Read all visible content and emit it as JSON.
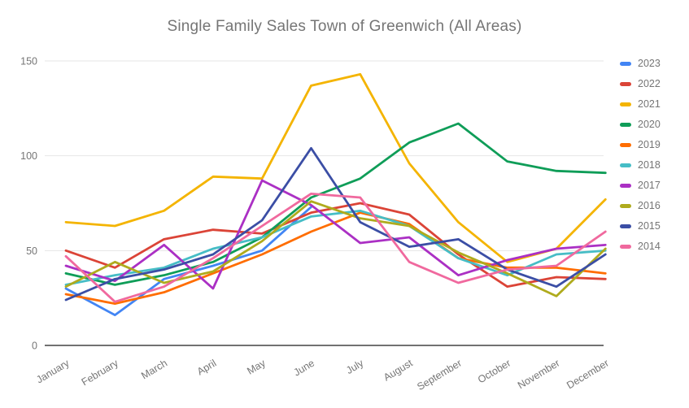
{
  "title": "Single Family Sales Town of Greenwich (All Areas)",
  "chart_data": {
    "type": "line",
    "title": "Single Family Sales Town of Greenwich (All Areas)",
    "xlabel": "",
    "ylabel": "",
    "ylim": [
      0,
      150
    ],
    "yticks": [
      0,
      50,
      100,
      150
    ],
    "grid": true,
    "legend_position": "right",
    "categories": [
      "January",
      "February",
      "March",
      "April",
      "May",
      "June",
      "July",
      "August",
      "September",
      "October",
      "November",
      "December"
    ],
    "series": [
      {
        "name": "2023",
        "color": "#4285F4",
        "values": [
          30,
          16,
          35,
          42,
          50,
          73,
          null,
          null,
          null,
          null,
          null,
          null
        ]
      },
      {
        "name": "2022",
        "color": "#DB4437",
        "values": [
          50,
          41,
          56,
          61,
          59,
          70,
          75,
          69,
          48,
          31,
          36,
          35
        ]
      },
      {
        "name": "2021",
        "color": "#F4B400",
        "values": [
          65,
          63,
          71,
          89,
          88,
          137,
          143,
          96,
          65,
          44,
          51,
          77
        ]
      },
      {
        "name": "2020",
        "color": "#0F9D58",
        "values": [
          38,
          32,
          37,
          44,
          57,
          78,
          88,
          107,
          117,
          97,
          92,
          91
        ]
      },
      {
        "name": "2019",
        "color": "#FF6D00",
        "values": [
          27,
          22,
          28,
          38,
          48,
          60,
          70,
          64,
          46,
          41,
          41,
          38
        ]
      },
      {
        "name": "2018",
        "color": "#46BDC6",
        "values": [
          32,
          37,
          41,
          51,
          57,
          68,
          71,
          63,
          46,
          37,
          48,
          50
        ]
      },
      {
        "name": "2017",
        "color": "#AB30C4",
        "values": [
          42,
          34,
          53,
          30,
          87,
          74,
          54,
          57,
          37,
          45,
          51,
          53
        ]
      },
      {
        "name": "2016",
        "color": "#AFAB1D",
        "values": [
          31,
          44,
          33,
          39,
          55,
          76,
          67,
          63,
          49,
          38,
          26,
          51
        ]
      },
      {
        "name": "2015",
        "color": "#3B4EA5",
        "values": [
          24,
          35,
          40,
          48,
          66,
          104,
          65,
          52,
          56,
          40,
          31,
          48
        ]
      },
      {
        "name": "2014",
        "color": "#F0699E",
        "values": [
          47,
          23,
          31,
          46,
          63,
          80,
          78,
          44,
          33,
          40,
          42,
          60
        ]
      }
    ]
  }
}
